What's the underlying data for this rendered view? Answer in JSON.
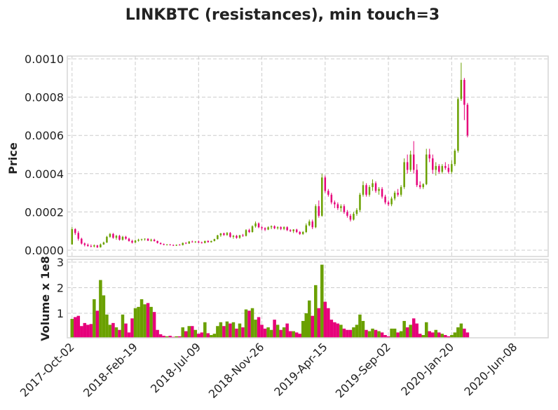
{
  "chart_data": {
    "type": "candlestick",
    "title": "LINKBTC (resistances), min touch=3",
    "colors": {
      "up": "#6aa000",
      "down": "#e6007a",
      "grid": "#cccccc"
    },
    "grid": true,
    "price_panel": {
      "ylabel": "Price",
      "ylim": [
        0,
        0.00101
      ],
      "yticks": [
        "0.0000",
        "0.0002",
        "0.0004",
        "0.0006",
        "0.0008",
        "0.0010"
      ],
      "ytick_values": [
        0,
        0.0002,
        0.0004,
        0.0006,
        0.0008,
        0.001
      ]
    },
    "volume_panel": {
      "ylabel": "Volume x 1e8",
      "ylim": [
        0,
        3.15
      ],
      "yticks": [
        "1",
        "2",
        "3"
      ],
      "ytick_values": [
        1,
        2,
        3
      ]
    },
    "x_ticks": [
      {
        "label": "2017-Oct-02",
        "index": 0
      },
      {
        "label": "2018-Feb-19",
        "index": 20
      },
      {
        "label": "2018-Jul-09",
        "index": 40
      },
      {
        "label": "2018-Nov-26",
        "index": 60
      },
      {
        "label": "2019-Apr-15",
        "index": 80
      },
      {
        "label": "2019-Sep-02",
        "index": 100
      },
      {
        "label": "2020-Jan-20",
        "index": 120
      },
      {
        "label": "2020-Jun-08",
        "index": 140
      }
    ],
    "x_range": [
      -1.5,
      150.5
    ],
    "bars": [
      [
        3e-05,
        0.00012,
        3e-05,
        0.00011,
        0.78
      ],
      [
        0.00011,
        0.000115,
        8e-05,
        9e-05,
        0.85
      ],
      [
        9e-05,
        0.0001,
        5e-05,
        6e-05,
        0.9
      ],
      [
        6e-05,
        6.5e-05,
        3e-05,
        3.5e-05,
        0.5
      ],
      [
        3.5e-05,
        4e-05,
        2e-05,
        2.8e-05,
        0.62
      ],
      [
        2.8e-05,
        3.5e-05,
        1.8e-05,
        2.2e-05,
        0.55
      ],
      [
        2.2e-05,
        3e-05,
        1.5e-05,
        2e-05,
        0.58
      ],
      [
        2e-05,
        3e-05,
        1.5e-05,
        2.5e-05,
        1.55
      ],
      [
        2.5e-05,
        2.8e-05,
        1.2e-05,
        1.5e-05,
        1.1
      ],
      [
        1.5e-05,
        3.5e-05,
        1.4e-05,
        3e-05,
        2.3
      ],
      [
        3e-05,
        4.5e-05,
        2.8e-05,
        4e-05,
        1.7
      ],
      [
        4e-05,
        7.5e-05,
        3.8e-05,
        7e-05,
        0.95
      ],
      [
        7e-05,
        9e-05,
        6.5e-05,
        8.5e-05,
        0.55
      ],
      [
        8.5e-05,
        9e-05,
        6e-05,
        6.5e-05,
        0.62
      ],
      [
        6.5e-05,
        8e-05,
        5.5e-05,
        7.5e-05,
        0.45
      ],
      [
        7.5e-05,
        8e-05,
        5e-05,
        5.5e-05,
        0.35
      ],
      [
        5.5e-05,
        7.5e-05,
        5e-05,
        7e-05,
        0.95
      ],
      [
        7e-05,
        7.5e-05,
        5.5e-05,
        6e-05,
        0.6
      ],
      [
        6e-05,
        6.5e-05,
        4.5e-05,
        4.8e-05,
        0.25
      ],
      [
        4.8e-05,
        5.5e-05,
        3.5e-05,
        4e-05,
        0.8
      ],
      [
        4e-05,
        5.5e-05,
        3.8e-05,
        5e-05,
        1.2
      ],
      [
        5e-05,
        6e-05,
        4.5e-05,
        5.5e-05,
        1.25
      ],
      [
        5.5e-05,
        6e-05,
        4.8e-05,
        5.8e-05,
        1.55
      ],
      [
        5.8e-05,
        6.2e-05,
        5e-05,
        6e-05,
        1.35
      ],
      [
        6e-05,
        6.2e-05,
        4.8e-05,
        5e-05,
        1.4
      ],
      [
        5e-05,
        6e-05,
        4.5e-05,
        5.5e-05,
        1.25
      ],
      [
        5.5e-05,
        6e-05,
        4.5e-05,
        4.8e-05,
        1.05
      ],
      [
        4.8e-05,
        5e-05,
        3.5e-05,
        3.8e-05,
        0.35
      ],
      [
        3.8e-05,
        4e-05,
        3e-05,
        3.2e-05,
        0.18
      ],
      [
        3.2e-05,
        3.5e-05,
        2.6e-05,
        2.8e-05,
        0.12
      ],
      [
        2.8e-05,
        3.2e-05,
        2.5e-05,
        3e-05,
        0.1
      ],
      [
        3e-05,
        3.2e-05,
        2.5e-05,
        2.7e-05,
        0.12
      ],
      [
        2.7e-05,
        3e-05,
        2.2e-05,
        2.4e-05,
        0.08
      ],
      [
        2.4e-05,
        3e-05,
        2.2e-05,
        2.8e-05,
        0.1
      ],
      [
        2.8e-05,
        3.2e-05,
        2.5e-05,
        2.7e-05,
        0.1
      ],
      [
        2.7e-05,
        4e-05,
        2.5e-05,
        3.8e-05,
        0.45
      ],
      [
        3.8e-05,
        4.2e-05,
        3.2e-05,
        3.5e-05,
        0.3
      ],
      [
        3.5e-05,
        4.8e-05,
        3.3e-05,
        4.5e-05,
        0.5
      ],
      [
        4.5e-05,
        5e-05,
        4e-05,
        4.2e-05,
        0.5
      ],
      [
        4.2e-05,
        4.8e-05,
        3.8e-05,
        4.5e-05,
        0.35
      ],
      [
        4.5e-05,
        5e-05,
        3.8e-05,
        4e-05,
        0.2
      ],
      [
        4e-05,
        4.5e-05,
        3.5e-05,
        3.8e-05,
        0.25
      ],
      [
        3.8e-05,
        5e-05,
        3.6e-05,
        4.8e-05,
        0.65
      ],
      [
        4.8e-05,
        5.2e-05,
        4e-05,
        4.2e-05,
        0.22
      ],
      [
        4.2e-05,
        5e-05,
        4e-05,
        4.8e-05,
        0.15
      ],
      [
        4.8e-05,
        6e-05,
        4.6e-05,
        5.8e-05,
        0.2
      ],
      [
        5.8e-05,
        8e-05,
        5.6e-05,
        7.8e-05,
        0.5
      ],
      [
        7.8e-05,
        9e-05,
        7e-05,
        8.8e-05,
        0.65
      ],
      [
        8.8e-05,
        9.2e-05,
        7.5e-05,
        8e-05,
        0.5
      ],
      [
        8e-05,
        9.5e-05,
        7.5e-05,
        9e-05,
        0.68
      ],
      [
        9e-05,
        9.5e-05,
        6.5e-05,
        7e-05,
        0.6
      ],
      [
        7e-05,
        8e-05,
        6e-05,
        7.5e-05,
        0.65
      ],
      [
        7.5e-05,
        8e-05,
        6e-05,
        6.5e-05,
        0.4
      ],
      [
        6.5e-05,
        8e-05,
        6e-05,
        7.8e-05,
        0.6
      ],
      [
        7.8e-05,
        8.5e-05,
        7e-05,
        7.5e-05,
        0.45
      ],
      [
        7.5e-05,
        0.00011,
        7.2e-05,
        0.000105,
        1.15
      ],
      [
        0.000105,
        0.000112,
        9e-05,
        9.5e-05,
        1.1
      ],
      [
        9.5e-05,
        0.00013,
        9.2e-05,
        0.000125,
        1.2
      ],
      [
        0.000125,
        0.00015,
        0.000118,
        0.00014,
        0.75
      ],
      [
        0.00014,
        0.000145,
        0.000115,
        0.00012,
        0.85
      ],
      [
        0.00012,
        0.000125,
        0.000105,
        0.000115,
        0.55
      ],
      [
        0.000115,
        0.00012,
        0.0001,
        0.000108,
        0.4
      ],
      [
        0.000108,
        0.000125,
        0.000105,
        0.00012,
        0.45
      ],
      [
        0.00012,
        0.00013,
        0.00011,
        0.000125,
        0.35
      ],
      [
        0.000125,
        0.00013,
        0.00011,
        0.000115,
        0.75
      ],
      [
        0.000115,
        0.000125,
        0.000108,
        0.00012,
        0.55
      ],
      [
        0.00012,
        0.000125,
        0.000105,
        0.000112,
        0.35
      ],
      [
        0.000112,
        0.000125,
        0.000105,
        0.00012,
        0.45
      ],
      [
        0.00012,
        0.000125,
        0.0001,
        0.000105,
        0.6
      ],
      [
        0.000105,
        0.00011,
        9.5e-05,
        0.0001,
        0.3
      ],
      [
        0.0001,
        0.00011,
        9e-05,
        0.000108,
        0.3
      ],
      [
        0.000108,
        0.000112,
        9e-05,
        9.5e-05,
        0.25
      ],
      [
        9.5e-05,
        0.0001,
        8e-05,
        8.5e-05,
        0.2
      ],
      [
        8.5e-05,
        0.0001,
        8e-05,
        9.5e-05,
        0.7
      ],
      [
        9.5e-05,
        0.00014,
        9e-05,
        0.00013,
        1.0
      ],
      [
        0.00013,
        0.00016,
        0.000125,
        0.00015,
        1.5
      ],
      [
        0.00015,
        0.00016,
        0.00011,
        0.00012,
        0.9
      ],
      [
        0.00012,
        0.00024,
        0.000115,
        0.00023,
        2.1
      ],
      [
        0.00023,
        0.00026,
        0.00017,
        0.00018,
        1.2
      ],
      [
        0.00018,
        0.0004,
        0.000175,
        0.00038,
        2.9
      ],
      [
        0.00038,
        0.00039,
        0.0003,
        0.00031,
        1.45
      ],
      [
        0.00031,
        0.00032,
        0.00028,
        0.00029,
        1.2
      ],
      [
        0.00029,
        0.0003,
        0.00024,
        0.00025,
        0.75
      ],
      [
        0.00025,
        0.00026,
        0.00022,
        0.00024,
        0.65
      ],
      [
        0.00024,
        0.00025,
        0.00021,
        0.00022,
        0.6
      ],
      [
        0.00022,
        0.00024,
        0.0002,
        0.00023,
        0.55
      ],
      [
        0.00023,
        0.00024,
        0.00019,
        0.0002,
        0.4
      ],
      [
        0.0002,
        0.00021,
        0.00017,
        0.00018,
        0.35
      ],
      [
        0.00018,
        0.00019,
        0.00015,
        0.00016,
        0.35
      ],
      [
        0.00016,
        0.0002,
        0.000155,
        0.00019,
        0.45
      ],
      [
        0.00019,
        0.00022,
        0.00018,
        0.00021,
        0.55
      ],
      [
        0.00021,
        0.0003,
        0.0002,
        0.00029,
        0.95
      ],
      [
        0.00029,
        0.00036,
        0.00028,
        0.00034,
        0.7
      ],
      [
        0.00034,
        0.00035,
        0.00028,
        0.00029,
        0.35
      ],
      [
        0.00029,
        0.00034,
        0.00028,
        0.00033,
        0.3
      ],
      [
        0.00033,
        0.00037,
        0.00031,
        0.00035,
        0.4
      ],
      [
        0.00035,
        0.00036,
        0.0003,
        0.00031,
        0.35
      ],
      [
        0.00031,
        0.00033,
        0.00029,
        0.00032,
        0.3
      ],
      [
        0.00032,
        0.00033,
        0.00027,
        0.00028,
        0.25
      ],
      [
        0.00028,
        0.00029,
        0.00024,
        0.00025,
        0.15
      ],
      [
        0.00025,
        0.00026,
        0.00023,
        0.00024,
        0.1
      ],
      [
        0.00024,
        0.00028,
        0.00023,
        0.00027,
        0.4
      ],
      [
        0.00027,
        0.00031,
        0.00026,
        0.0003,
        0.4
      ],
      [
        0.0003,
        0.00032,
        0.00028,
        0.00029,
        0.25
      ],
      [
        0.00029,
        0.00034,
        0.00028,
        0.00033,
        0.3
      ],
      [
        0.00033,
        0.00048,
        0.00032,
        0.00046,
        0.7
      ],
      [
        0.00046,
        0.0005,
        0.0004,
        0.00042,
        0.45
      ],
      [
        0.00042,
        0.00052,
        0.00041,
        0.0005,
        0.55
      ],
      [
        0.0005,
        0.00057,
        0.0004,
        0.00042,
        0.8
      ],
      [
        0.00042,
        0.00045,
        0.00033,
        0.00034,
        0.6
      ],
      [
        0.00034,
        0.00036,
        0.00032,
        0.00033,
        0.2
      ],
      [
        0.00033,
        0.00035,
        0.00032,
        0.000345,
        0.15
      ],
      [
        0.000345,
        0.00053,
        0.00034,
        0.0005,
        0.65
      ],
      [
        0.0005,
        0.00053,
        0.00046,
        0.00048,
        0.3
      ],
      [
        0.00048,
        0.0005,
        0.0004,
        0.00042,
        0.25
      ],
      [
        0.00042,
        0.00046,
        0.00039,
        0.00044,
        0.35
      ],
      [
        0.00044,
        0.00045,
        0.0004,
        0.00041,
        0.25
      ],
      [
        0.00041,
        0.00045,
        0.0004,
        0.00044,
        0.2
      ],
      [
        0.00044,
        0.00046,
        0.00042,
        0.00043,
        0.15
      ],
      [
        0.00043,
        0.00045,
        0.0004,
        0.00041,
        0.1
      ],
      [
        0.00041,
        0.00047,
        0.0004,
        0.00045,
        0.15
      ],
      [
        0.00045,
        0.00053,
        0.00044,
        0.00052,
        0.25
      ],
      [
        0.00052,
        0.0008,
        0.00051,
        0.00079,
        0.45
      ],
      [
        0.00079,
        0.00098,
        0.00078,
        0.00089,
        0.6
      ],
      [
        0.00089,
        0.0009,
        0.00068,
        0.00076,
        0.4
      ],
      [
        0.00076,
        0.00077,
        0.00059,
        0.0006,
        0.25
      ]
    ]
  }
}
